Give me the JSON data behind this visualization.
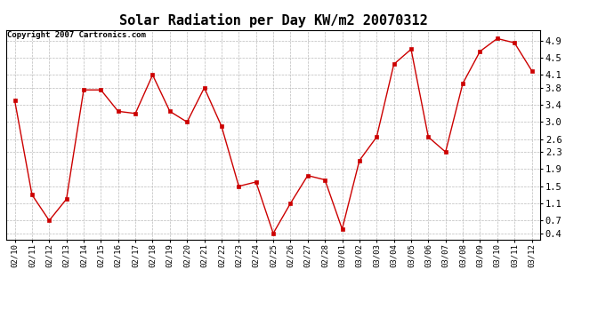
{
  "title": "Solar Radiation per Day KW/m2 20070312",
  "copyright": "Copyright 2007 Cartronics.com",
  "dates": [
    "02/10",
    "02/11",
    "02/12",
    "02/13",
    "02/14",
    "02/15",
    "02/16",
    "02/17",
    "02/18",
    "02/19",
    "02/20",
    "02/21",
    "02/22",
    "02/23",
    "02/24",
    "02/25",
    "02/26",
    "02/27",
    "02/28",
    "03/01",
    "03/02",
    "03/03",
    "03/04",
    "03/05",
    "03/06",
    "03/07",
    "03/08",
    "03/09",
    "03/10",
    "03/11",
    "03/12"
  ],
  "values": [
    3.5,
    1.3,
    0.7,
    1.2,
    3.75,
    3.75,
    3.25,
    3.2,
    4.1,
    3.25,
    3.0,
    3.8,
    2.9,
    1.5,
    1.6,
    0.4,
    1.1,
    1.75,
    1.65,
    0.5,
    2.1,
    2.65,
    4.35,
    4.7,
    2.65,
    2.3,
    3.9,
    4.65,
    4.95,
    4.85,
    4.2
  ],
  "yticks": [
    0.4,
    0.7,
    1.1,
    1.5,
    1.9,
    2.3,
    2.6,
    3.0,
    3.4,
    3.8,
    4.1,
    4.5,
    4.9
  ],
  "line_color": "#cc0000",
  "marker": "s",
  "marker_size": 2.5,
  "background_color": "#ffffff",
  "plot_bg_color": "#ffffff",
  "grid_color": "#bbbbbb",
  "title_fontsize": 11,
  "copyright_fontsize": 6.5,
  "tick_fontsize": 6.5,
  "ytick_fontsize": 7.5
}
